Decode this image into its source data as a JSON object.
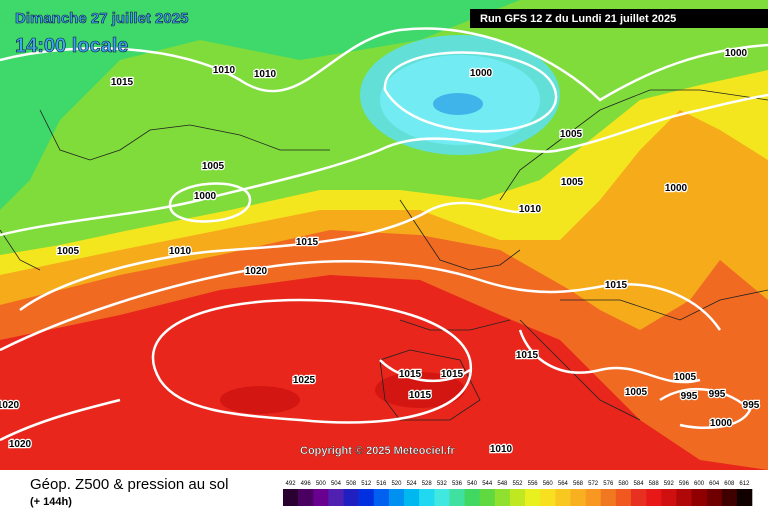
{
  "header": {
    "date": "Dimanche 27 juillet 2025",
    "time": "14:00 locale",
    "run": "Run GFS 12 Z du Lundi 21 juillet 2025"
  },
  "copyright": "Copyright © 2025 Meteociel.fr",
  "footer": {
    "title": "Géop. Z500 & pression au sol",
    "lead": "(+ 144h)"
  },
  "isobar_labels": [
    1015,
    1010,
    1010,
    1000,
    1000,
    1005,
    1005,
    1005,
    1000,
    1000,
    1010,
    1005,
    1010,
    1015,
    1020,
    1015,
    1015,
    1015,
    1015,
    1025,
    1015,
    1005,
    1005,
    995,
    995,
    995,
    1000,
    1020,
    1020,
    1010
  ],
  "colorbar": {
    "labels": [
      492,
      496,
      500,
      504,
      508,
      512,
      516,
      520,
      524,
      528,
      532,
      536,
      540,
      544,
      548,
      552,
      556,
      560,
      564,
      568,
      572,
      576,
      580,
      584,
      588,
      592,
      596,
      600,
      604,
      608,
      612
    ]
  }
}
